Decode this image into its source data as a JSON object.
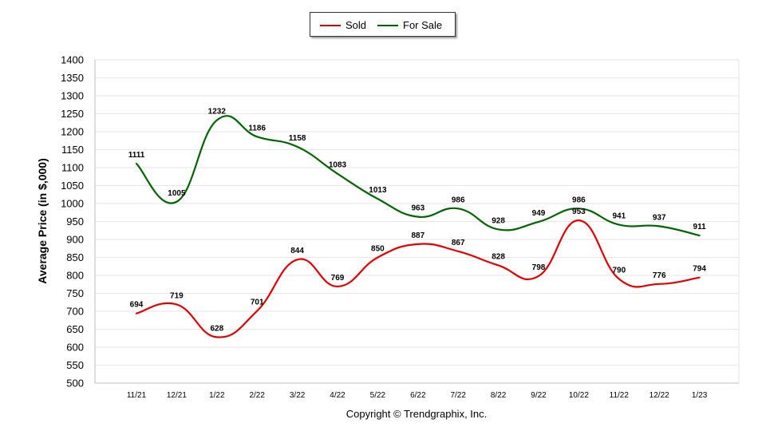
{
  "chart_data": {
    "type": "line",
    "categories": [
      "11/21",
      "12/21",
      "1/22",
      "2/22",
      "3/22",
      "4/22",
      "5/22",
      "6/22",
      "7/22",
      "8/22",
      "9/22",
      "10/22",
      "11/22",
      "12/22",
      "1/23"
    ],
    "series": [
      {
        "name": "Sold",
        "color": "#e00000",
        "values": [
          694,
          719,
          628,
          701,
          844,
          769,
          850,
          887,
          867,
          828,
          798,
          953,
          790,
          776,
          794
        ]
      },
      {
        "name": "For Sale",
        "color": "#006400",
        "values": [
          1111,
          1005,
          1232,
          1186,
          1158,
          1083,
          1013,
          963,
          986,
          928,
          949,
          986,
          941,
          937,
          911
        ]
      }
    ],
    "ylabel": "Average Price (in $,000)",
    "ylim": [
      500,
      1400
    ],
    "yticks": [
      500,
      550,
      600,
      650,
      700,
      750,
      800,
      850,
      900,
      950,
      1000,
      1050,
      1100,
      1150,
      1200,
      1250,
      1300,
      1350,
      1400
    ],
    "grid": "horizontal",
    "legend_position": "top-center",
    "smooth": true
  },
  "footer": {
    "copyright": "Copyright © Trendgraphix, Inc."
  }
}
